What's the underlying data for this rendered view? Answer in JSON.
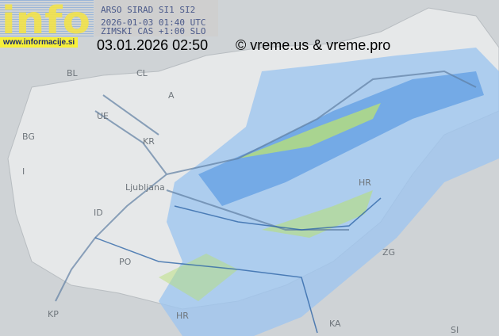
{
  "header": {
    "source": "ARSO SIRAD SI1 SI2",
    "utc_time": "2026-01-03 01:40 UTC",
    "timezone_note": "ZIMSKI CAS +1:00 SLO"
  },
  "logo": {
    "text": "info",
    "url": "www.informacije.si"
  },
  "local_time": "03.01.2026 02:50",
  "copyright": "© vreme.us & vreme.pro",
  "labels": [
    {
      "name": "BL",
      "l": 84,
      "t": 86
    },
    {
      "name": "CL",
      "l": 172,
      "t": 86
    },
    {
      "name": "A",
      "l": 212,
      "t": 114
    },
    {
      "name": "UE",
      "l": 122,
      "t": 140
    },
    {
      "name": "BG",
      "l": 28,
      "t": 166
    },
    {
      "name": "KR",
      "l": 180,
      "t": 172
    },
    {
      "name": "I",
      "l": 28,
      "t": 210
    },
    {
      "name": "Ljubljana",
      "l": 158,
      "t": 230
    },
    {
      "name": "ID",
      "l": 118,
      "t": 262
    },
    {
      "name": "PO",
      "l": 150,
      "t": 324
    },
    {
      "name": "KP",
      "l": 60,
      "t": 390
    },
    {
      "name": "HR",
      "l": 452,
      "t": 224
    },
    {
      "name": "ZG",
      "l": 482,
      "t": 312
    },
    {
      "name": "KA",
      "l": 415,
      "t": 402
    },
    {
      "name": "SI",
      "l": 568,
      "t": 410
    },
    {
      "name": "HR",
      "l": 222,
      "t": 392
    }
  ],
  "colors": {
    "radar_light": "#9fc6ef",
    "radar_mid": "#4f93e0",
    "radar_strong": "#a9dd6f",
    "border": "#2f67a8"
  }
}
